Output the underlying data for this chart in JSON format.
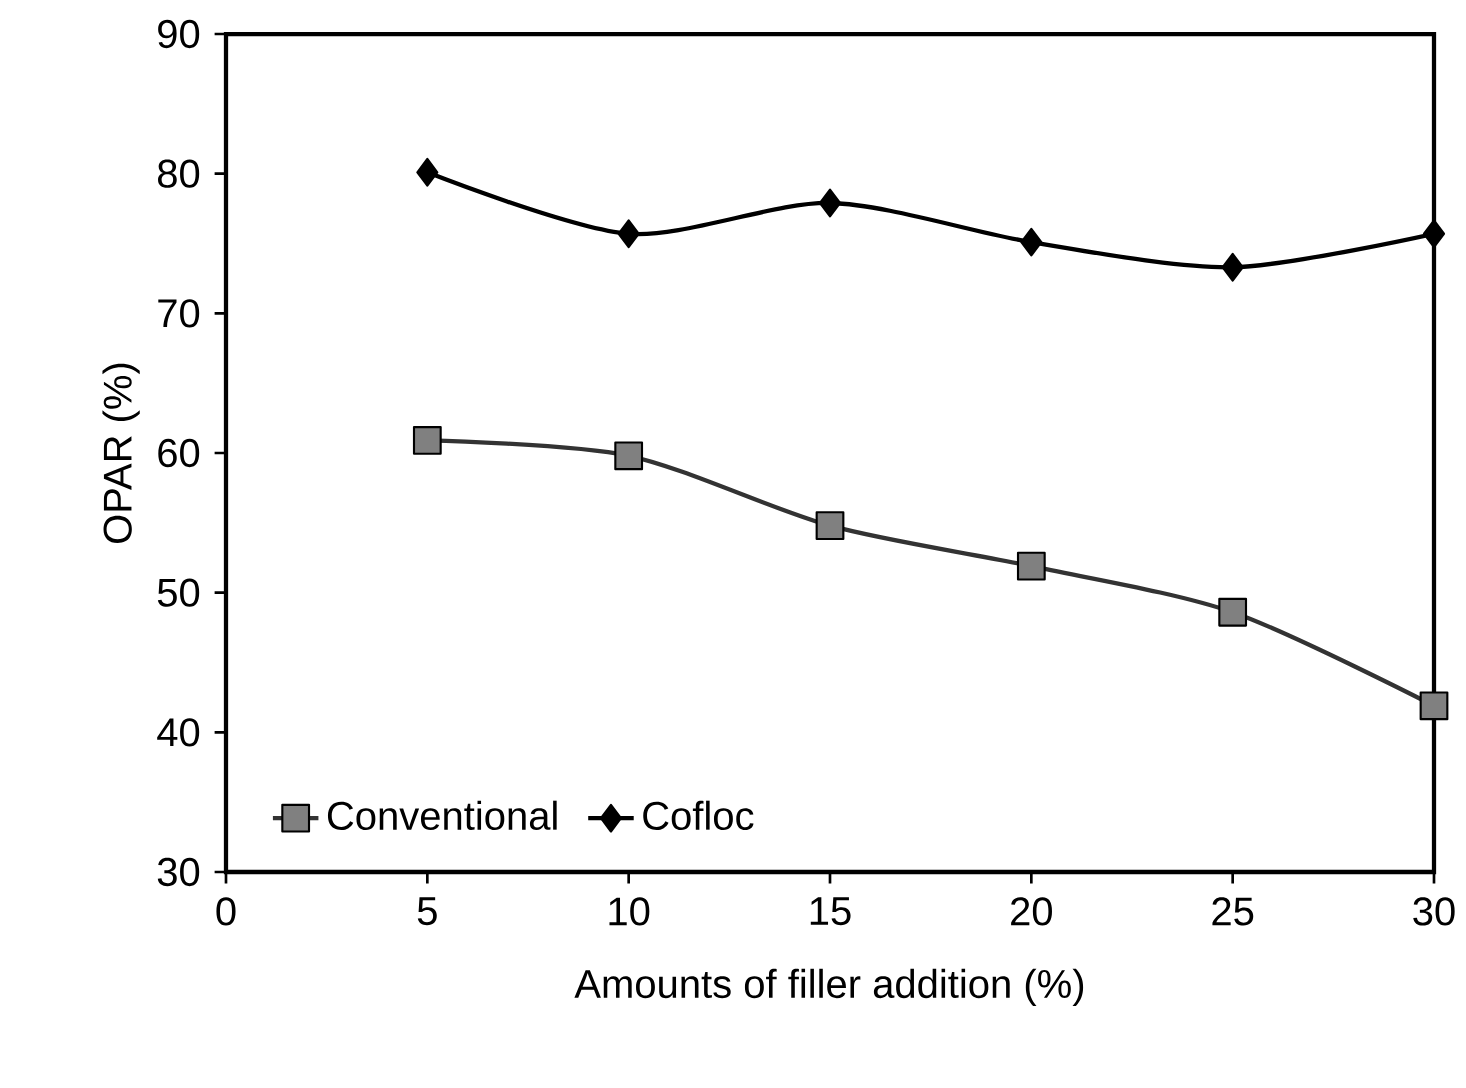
{
  "chart_data": {
    "type": "line",
    "xlabel": "Amounts of filler addition (%)",
    "ylabel": "OPAR (%)",
    "x": [
      5,
      10,
      15,
      20,
      25,
      30
    ],
    "series": [
      {
        "name": "Conventional",
        "color": "#333333",
        "marker": "square",
        "values": [
          60.9,
          59.8,
          54.8,
          51.9,
          48.6,
          41.9
        ]
      },
      {
        "name": "Cofloc",
        "color": "#000000",
        "marker": "diamond",
        "values": [
          80.1,
          75.7,
          77.9,
          75.1,
          73.3,
          75.7
        ]
      }
    ],
    "xlim": [
      0,
      30
    ],
    "xticks": [
      0,
      5,
      10,
      15,
      20,
      25,
      30
    ],
    "ylim": [
      30,
      90
    ],
    "yticks": [
      30,
      40,
      50,
      60,
      70,
      80,
      90
    ],
    "grid": false,
    "legend": "bottom left",
    "line_style": "solid"
  }
}
